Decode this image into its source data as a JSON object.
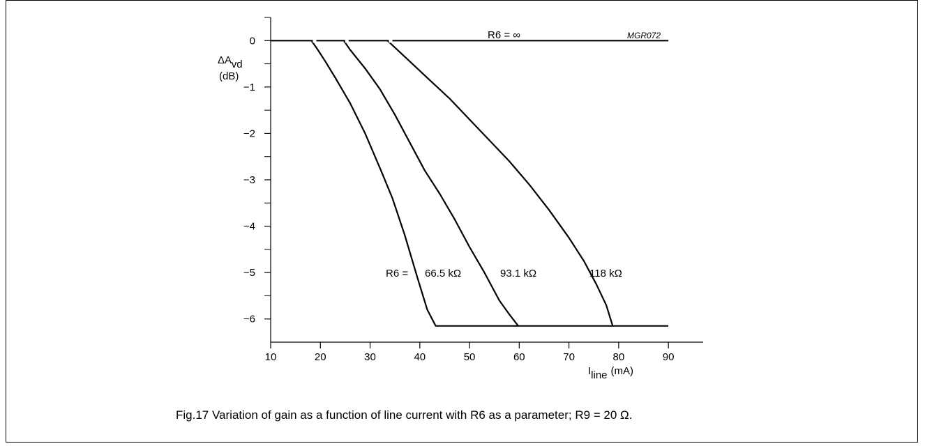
{
  "chart_data": {
    "type": "line",
    "figure_code": "MGR072",
    "caption": "Fig.17  Variation of gain as a function of line current with R6 as a parameter; R9 = 20 Ω.",
    "ylabel_main": "ΔA",
    "ylabel_sub": "vd",
    "ylabel_unit": "(dB)",
    "xlabel_main": "I",
    "xlabel_sub": "line",
    "xlabel_unit": "(mA)",
    "xlim": [
      10,
      97
    ],
    "ylim": [
      -6.5,
      0.5
    ],
    "xticks": [
      10,
      20,
      30,
      40,
      50,
      60,
      70,
      80,
      90
    ],
    "yticks": [
      0,
      -1,
      -2,
      -3,
      -4,
      -5,
      -6
    ],
    "grid": false,
    "series": [
      {
        "name": "R6 = ∞",
        "x": [
          10,
          90
        ],
        "y": [
          0,
          0
        ]
      },
      {
        "name": "66.5 kΩ",
        "x": [
          18.2,
          19.5,
          21,
          23,
          26,
          29,
          32,
          34.5,
          37,
          39.5,
          41.5,
          43.2,
          90
        ],
        "y": [
          0,
          -0.2,
          -0.45,
          -0.8,
          -1.35,
          -2.0,
          -2.75,
          -3.4,
          -4.2,
          -5.1,
          -5.8,
          -6.15,
          -6.15
        ]
      },
      {
        "name": "93.1 kΩ",
        "x": [
          24.7,
          26,
          29,
          32,
          35,
          38,
          41,
          44,
          47,
          50,
          53,
          56,
          58,
          59.8
        ],
        "y": [
          0,
          -0.2,
          -0.6,
          -1.05,
          -1.6,
          -2.2,
          -2.8,
          -3.3,
          -3.85,
          -4.45,
          -5.0,
          -5.6,
          -5.9,
          -6.15
        ]
      },
      {
        "name": "118 kΩ",
        "x": [
          33.5,
          35,
          38,
          42,
          46,
          50,
          54,
          58,
          62,
          66,
          70,
          73,
          75.5,
          77.5,
          78.8
        ],
        "y": [
          0,
          -0.15,
          -0.45,
          -0.85,
          -1.25,
          -1.7,
          -2.15,
          -2.6,
          -3.1,
          -3.65,
          -4.25,
          -4.75,
          -5.25,
          -5.7,
          -6.15
        ]
      }
    ],
    "annotations": {
      "r6_inf": "R6 = ∞",
      "r6_prefix": "R6 =",
      "label_665": "66.5 kΩ",
      "label_931": "93.1 kΩ",
      "label_118": "118 kΩ"
    }
  }
}
